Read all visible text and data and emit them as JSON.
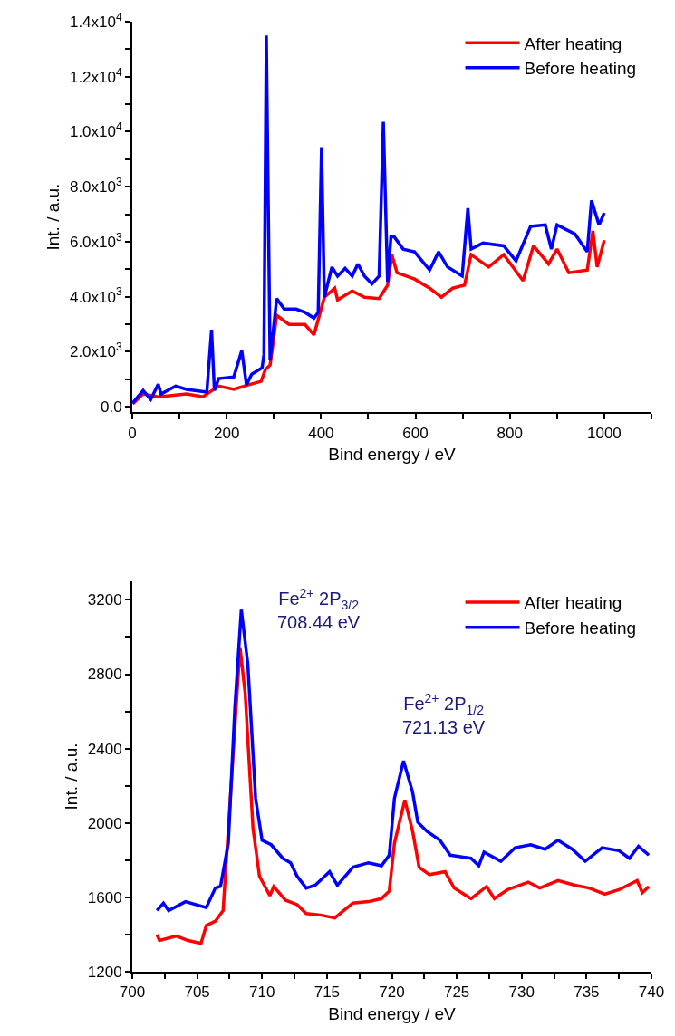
{
  "chart_data": [
    {
      "type": "line",
      "xlabel": "Bind energy / eV",
      "ylabel": "Int. / a.u.",
      "legend": "top right",
      "xlim": [
        0,
        1100
      ],
      "ylim": [
        -200,
        14000
      ],
      "xticks": [
        0,
        {
          "value": 100,
          "label": null
        },
        200,
        {
          "value": 300,
          "label": null
        },
        400,
        {
          "value": 500,
          "label": null
        },
        600,
        {
          "value": 700,
          "label": null
        },
        800,
        {
          "value": 900,
          "label": null
        },
        1000,
        {
          "value": 1100,
          "label": null
        }
      ],
      "yticks": [
        {
          "value": 0,
          "label": "0.0"
        },
        {
          "value": 1000,
          "label": null
        },
        {
          "value": 2000,
          "label": "2.0x10$^{3}$"
        },
        {
          "value": 3000,
          "label": null
        },
        {
          "value": 4000,
          "label": "4.0x10$^{3}$"
        },
        {
          "value": 5000,
          "label": null
        },
        {
          "value": 6000,
          "label": "6.0x10$^{3}$"
        },
        {
          "value": 7000,
          "label": null
        },
        {
          "value": 8000,
          "label": "8.0x10$^{3}$"
        },
        {
          "value": 9000,
          "label": null
        },
        {
          "value": 10000,
          "label": "1.0x10$^{4}$"
        },
        {
          "value": 11000,
          "label": null
        },
        {
          "value": 12000,
          "label": "1.2x10$^{4}$"
        },
        {
          "value": 13000,
          "label": null
        },
        {
          "value": 14000,
          "label": "1.4x10$^{4}$"
        }
      ],
      "series": [
        {
          "name": "After heating",
          "color": "#ff0000",
          "x": [
            1,
            23,
            55,
            115,
            150,
            158,
            183,
            215,
            245,
            273,
            282,
            292,
            306,
            332,
            366,
            385,
            407,
            429,
            435,
            466,
            492,
            523,
            541,
            550,
            561,
            598,
            630,
            655,
            679,
            704,
            718,
            755,
            787,
            828,
            850,
            882,
            900,
            925,
            964,
            976,
            985,
            1000
          ],
          "values": [
            100,
            460,
            360,
            460,
            360,
            460,
            750,
            630,
            790,
            920,
            1350,
            1510,
            3320,
            2990,
            2990,
            2610,
            3980,
            4310,
            3880,
            4210,
            3980,
            3930,
            4420,
            5530,
            4870,
            4640,
            4310,
            3980,
            4310,
            4420,
            5530,
            5080,
            5530,
            4580,
            5850,
            5190,
            5730,
            4870,
            4970,
            6390,
            5080,
            6060
          ]
        },
        {
          "name": "Before heating",
          "color": "#0000ff",
          "x": [
            1,
            23,
            39,
            55,
            61,
            92,
            115,
            158,
            168,
            174,
            183,
            215,
            232,
            242,
            253,
            275,
            279,
            284,
            292,
            306,
            322,
            347,
            366,
            385,
            394,
            401,
            407,
            423,
            435,
            451,
            466,
            478,
            492,
            508,
            523,
            532,
            541,
            548,
            555,
            574,
            598,
            630,
            649,
            668,
            699,
            711,
            718,
            743,
            787,
            813,
            844,
            875,
            888,
            900,
            938,
            964,
            973,
            989,
            1000
          ],
          "values": [
            140,
            590,
            260,
            820,
            460,
            750,
            630,
            530,
            2800,
            590,
            1020,
            1080,
            2040,
            790,
            1180,
            1410,
            1900,
            13500,
            1680,
            3930,
            3550,
            3550,
            3430,
            3220,
            3430,
            9440,
            3980,
            5080,
            4750,
            5030,
            4750,
            5190,
            4750,
            4470,
            4750,
            10360,
            4540,
            6180,
            6180,
            5730,
            5630,
            4970,
            5630,
            5080,
            4750,
            7220,
            5730,
            5950,
            5850,
            5300,
            6560,
            6610,
            5730,
            6610,
            6280,
            5630,
            7500,
            6610,
            7050
          ]
        }
      ]
    },
    {
      "type": "line",
      "xlabel": "Bind energy / eV",
      "ylabel": "Int. / a.u.",
      "legend": "top right",
      "xlim": [
        700,
        740
      ],
      "ylim": [
        1200,
        3300
      ],
      "xticks": [
        700,
        {
          "value": 702.5,
          "label": null
        },
        705,
        {
          "value": 707.5,
          "label": null
        },
        710,
        {
          "value": 712.5,
          "label": null
        },
        715,
        {
          "value": 717.5,
          "label": null
        },
        720,
        {
          "value": 722.5,
          "label": null
        },
        725,
        {
          "value": 727.5,
          "label": null
        },
        730,
        {
          "value": 732.5,
          "label": null
        },
        735,
        {
          "value": 737.5,
          "label": null
        },
        740
      ],
      "yticks": [
        1200,
        {
          "value": 1400,
          "label": null
        },
        1600,
        {
          "value": 1800,
          "label": null
        },
        2000,
        {
          "value": 2200,
          "label": null
        },
        2400,
        {
          "value": 2600,
          "label": null
        },
        2800,
        {
          "value": 3000,
          "label": null
        },
        3200
      ],
      "annotations": [
        "Fe$^{2+}$ 2P$_{3/2}$\n708.44 eV",
        "Fe$^{2+}$ 2P$_{1/2}$\n721.13 eV"
      ],
      "series": [
        {
          "name": "After heating",
          "color": "#ff0000",
          "x": [
            701.9,
            702.1,
            703.4,
            704.3,
            705.3,
            705.7,
            706.4,
            707.0,
            707.7,
            708.3,
            708.7,
            709.3,
            709.8,
            710.6,
            710.9,
            711.8,
            712.7,
            713.4,
            714.5,
            715.6,
            717.0,
            718.2,
            719.2,
            719.8,
            720.2,
            721.0,
            721.6,
            722.1,
            722.9,
            724.1,
            724.8,
            726.1,
            727.3,
            727.9,
            728.9,
            730.5,
            731.4,
            732.8,
            734.1,
            735.2,
            736.4,
            737.5,
            738.9,
            739.3,
            739.8
          ],
          "values": [
            1400,
            1368,
            1392,
            1368,
            1352,
            1448,
            1472,
            1529,
            2293,
            2945,
            2696,
            1972,
            1714,
            1609,
            1658,
            1585,
            1561,
            1513,
            1505,
            1489,
            1569,
            1577,
            1593,
            1634,
            1891,
            2124,
            1955,
            1762,
            1722,
            1738,
            1650,
            1593,
            1658,
            1593,
            1641,
            1682,
            1650,
            1690,
            1665,
            1650,
            1617,
            1641,
            1690,
            1625,
            1658
          ]
        },
        {
          "name": "Before heating",
          "color": "#0000ff",
          "x": [
            701.9,
            702.4,
            702.8,
            704.1,
            705.7,
            706.4,
            706.8,
            707.4,
            707.9,
            708.4,
            708.9,
            709.5,
            710.0,
            710.7,
            711.6,
            712.2,
            712.7,
            713.4,
            714.1,
            715.2,
            715.8,
            717.0,
            718.2,
            719.2,
            719.8,
            720.2,
            720.9,
            721.6,
            722.0,
            722.7,
            723.7,
            724.5,
            726.1,
            726.7,
            727.1,
            728.4,
            729.5,
            730.7,
            731.8,
            732.8,
            733.9,
            734.9,
            736.2,
            737.5,
            738.3,
            739.0,
            739.8
          ],
          "values": [
            1529,
            1569,
            1529,
            1577,
            1545,
            1650,
            1659,
            1891,
            2616,
            3147,
            2857,
            2133,
            1907,
            1883,
            1810,
            1786,
            1714,
            1650,
            1665,
            1738,
            1665,
            1762,
            1786,
            1770,
            1827,
            2133,
            2334,
            2165,
            2004,
            1955,
            1907,
            1827,
            1810,
            1770,
            1843,
            1794,
            1867,
            1883,
            1859,
            1907,
            1859,
            1794,
            1867,
            1851,
            1810,
            1875,
            1827
          ]
        }
      ]
    }
  ]
}
